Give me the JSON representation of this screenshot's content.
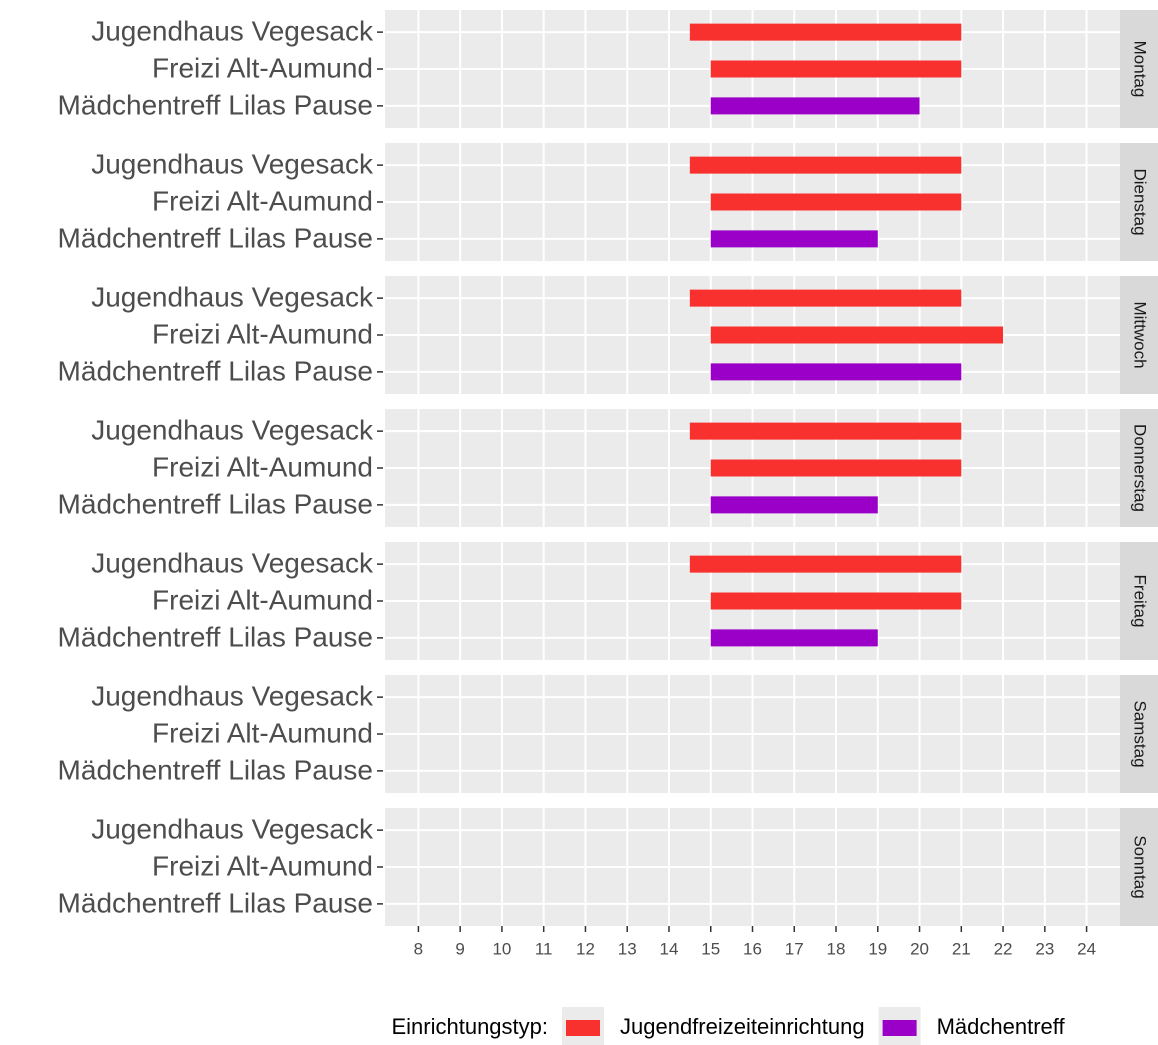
{
  "chart_data": {
    "type": "range-bar",
    "categories": [
      "Jugendhaus Vegesack",
      "Freizi Alt-Aumund",
      "Mädchentreff Lilas Pause"
    ],
    "category_series": [
      0,
      0,
      1
    ],
    "series": [
      {
        "name": "Jugendfreizeiteinrichtung",
        "color": "#f8312f"
      },
      {
        "name": "Mädchentreff",
        "color": "#9b00c8"
      }
    ],
    "legend_title": "Einrichtungstyp:",
    "legend_position": "bottom-right",
    "facets": [
      {
        "label": "Montag",
        "start": [
          14.5,
          15,
          15
        ],
        "end": [
          21,
          21,
          20
        ]
      },
      {
        "label": "Dienstag",
        "start": [
          14.5,
          15,
          15
        ],
        "end": [
          21,
          21,
          19
        ]
      },
      {
        "label": "Mittwoch",
        "start": [
          14.5,
          15,
          15
        ],
        "end": [
          21,
          22,
          21
        ]
      },
      {
        "label": "Donnerstag",
        "start": [
          14.5,
          15,
          15
        ],
        "end": [
          21,
          21,
          19
        ]
      },
      {
        "label": "Freitag",
        "start": [
          14.5,
          15,
          15
        ],
        "end": [
          21,
          21,
          19
        ]
      },
      {
        "label": "Samstag",
        "start": [
          null,
          null,
          null
        ],
        "end": [
          null,
          null,
          null
        ]
      },
      {
        "label": "Sonntag",
        "start": [
          null,
          null,
          null
        ],
        "end": [
          null,
          null,
          null
        ]
      }
    ],
    "xlim": [
      7.2,
      24.8
    ],
    "xticks": [
      8,
      9,
      10,
      11,
      12,
      13,
      14,
      15,
      16,
      17,
      18,
      19,
      20,
      21,
      22,
      23,
      24
    ],
    "grid": true
  }
}
